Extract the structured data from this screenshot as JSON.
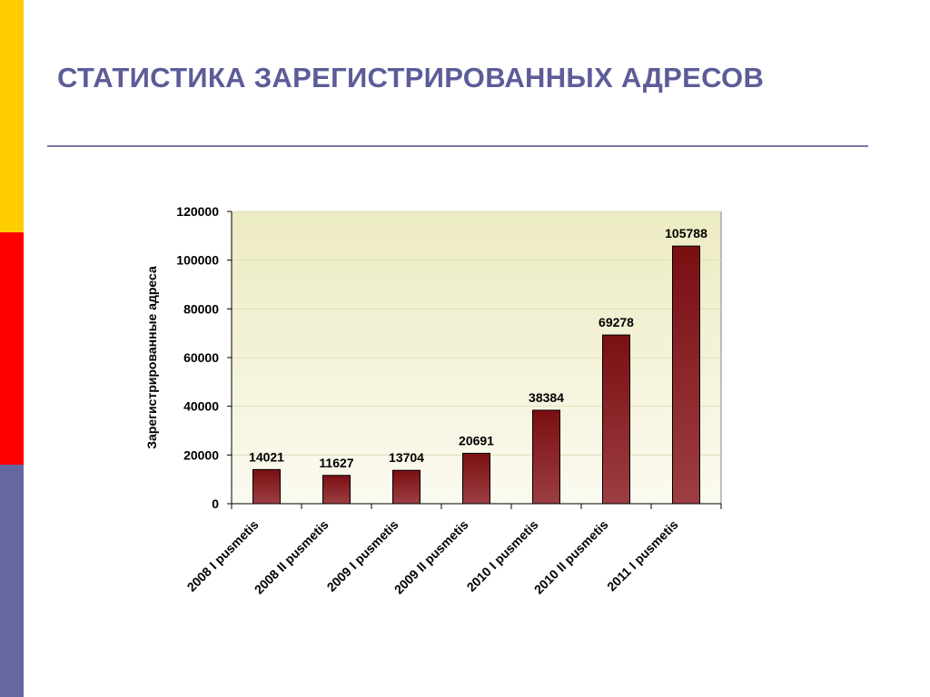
{
  "slide": {
    "title": "СТАТИСТИКА ЗАРЕГИСТРИРОВАННЫХ АДРЕСОВ"
  },
  "colors": {
    "accent_yellow": "#ffcc00",
    "accent_red": "#ff0000",
    "accent_blue": "#6666a0",
    "title": "#5c5c99",
    "bar": "#8b1e1e",
    "plot_background": "#f2f0c8"
  },
  "chart_data": {
    "type": "bar",
    "title": "",
    "xlabel": "",
    "ylabel": "Зарегистрированные адреса",
    "ylim": [
      0,
      120000
    ],
    "yticks": [
      0,
      20000,
      40000,
      60000,
      80000,
      100000,
      120000
    ],
    "grid": true,
    "legend": "none",
    "categories": [
      "2008 I pusmetis",
      "2008 II pusmetis",
      "2009 I pusmetis",
      "2009 II pusmetis",
      "2010 I pusmetis",
      "2010 II pusmetis",
      "2011 I pusmetis"
    ],
    "values": [
      14021,
      11627,
      13704,
      20691,
      38384,
      69278,
      105788
    ]
  }
}
